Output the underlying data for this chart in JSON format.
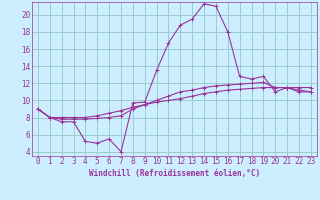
{
  "xlabel": "Windchill (Refroidissement éolien,°C)",
  "background_color": "#cceeff",
  "grid_color": "#99cccc",
  "line_color": "#993399",
  "x_hours": [
    0,
    1,
    2,
    3,
    4,
    5,
    6,
    7,
    8,
    9,
    10,
    11,
    12,
    13,
    14,
    15,
    16,
    17,
    18,
    19,
    20,
    21,
    22,
    23
  ],
  "line1": [
    9.0,
    8.0,
    7.5,
    7.5,
    5.2,
    5.0,
    5.5,
    4.0,
    9.7,
    9.8,
    13.5,
    16.7,
    18.8,
    19.5,
    21.3,
    21.0,
    18.0,
    12.8,
    12.5,
    12.8,
    11.0,
    11.5,
    11.0,
    11.0
  ],
  "line2": [
    9.0,
    8.0,
    8.0,
    8.0,
    8.0,
    8.2,
    8.5,
    8.8,
    9.2,
    9.5,
    9.8,
    10.0,
    10.2,
    10.5,
    10.8,
    11.0,
    11.2,
    11.3,
    11.4,
    11.5,
    11.5,
    11.5,
    11.5,
    11.5
  ],
  "line3": [
    9.0,
    8.0,
    7.8,
    7.8,
    7.8,
    7.9,
    8.0,
    8.2,
    9.0,
    9.5,
    10.0,
    10.5,
    11.0,
    11.2,
    11.5,
    11.7,
    11.8,
    11.9,
    12.0,
    12.1,
    11.5,
    11.5,
    11.2,
    11.0
  ],
  "ylim": [
    3.5,
    21.5
  ],
  "yticks": [
    4,
    6,
    8,
    10,
    12,
    14,
    16,
    18,
    20
  ],
  "xticks": [
    0,
    1,
    2,
    3,
    4,
    5,
    6,
    7,
    8,
    9,
    10,
    11,
    12,
    13,
    14,
    15,
    16,
    17,
    18,
    19,
    20,
    21,
    22,
    23
  ],
  "tick_fontsize": 5.5,
  "xlabel_fontsize": 5.5
}
